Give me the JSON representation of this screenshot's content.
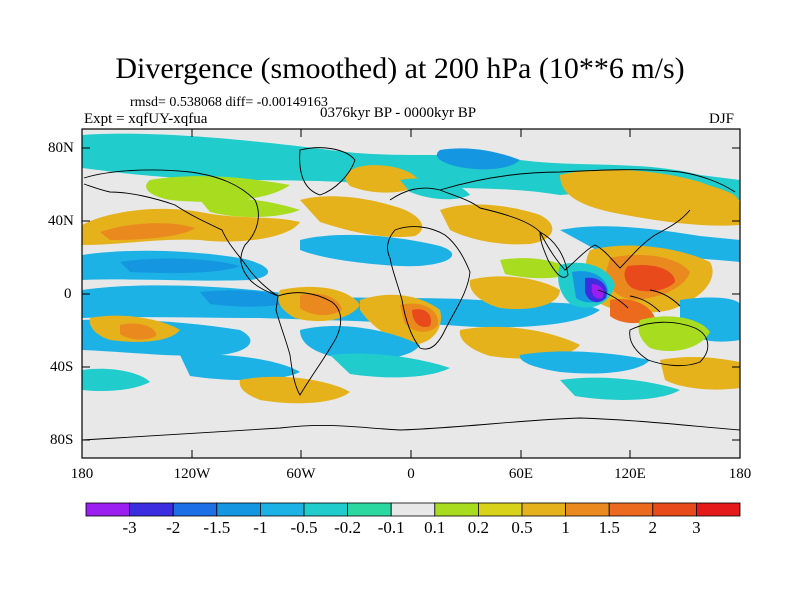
{
  "title": "Divergence (smoothed) at 200 hPa (10**6 m/s)",
  "stats": "rmsd= 0.538068 diff= -0.00149163",
  "experiment": "Expt = xqfUY-xqfua",
  "period": "0376kyr BP - 0000kyr BP",
  "season": "DJF",
  "axes": {
    "y_ticks": [
      "80N",
      "40N",
      "0",
      "40S",
      "80S"
    ],
    "x_ticks": [
      "180",
      "120W",
      "60W",
      "0",
      "60E",
      "120E",
      "180"
    ]
  },
  "colorbar": {
    "labels": [
      "-3",
      "-2",
      "-1.5",
      "-1",
      "-0.5",
      "-0.2",
      "-0.1",
      "0.1",
      "0.2",
      "0.5",
      "1",
      "1.5",
      "2",
      "3"
    ],
    "colors": [
      "#9a1ff0",
      "#3c2ee0",
      "#1c6fe6",
      "#1596e0",
      "#1cb2e6",
      "#20cccc",
      "#2ad8a0",
      "#e8e8e8",
      "#a8dc1e",
      "#d8d21a",
      "#e6b21c",
      "#ea8a1e",
      "#ec6a1e",
      "#e84a1c",
      "#e41a1a"
    ]
  },
  "palette": {
    "plot_bg": "#e8e8e8",
    "land_outline": "#000000"
  }
}
